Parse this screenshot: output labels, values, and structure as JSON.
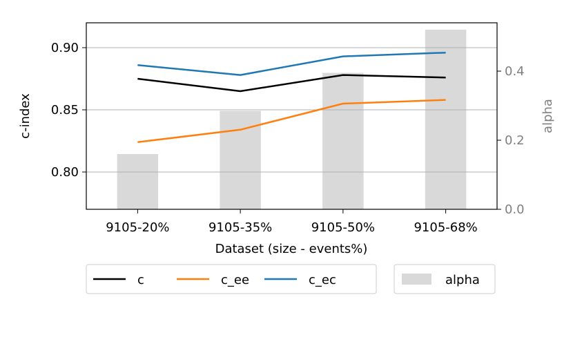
{
  "chart_data": {
    "type": "line",
    "categories": [
      "9105-20%",
      "9105-35%",
      "9105-50%",
      "9105-68%"
    ],
    "xlabel": "Dataset (size - events%)",
    "ylabel": "c-index",
    "y2label": "alpha",
    "ylim": [
      0.77,
      0.92
    ],
    "y2lim": [
      0.0,
      0.54
    ],
    "yticks": [
      "0.80",
      "0.85",
      "0.90"
    ],
    "y2ticks": [
      "0.0",
      "0.2",
      "0.4"
    ],
    "grid": "horizontal",
    "legend_position": "bottom",
    "series": [
      {
        "name": "c",
        "type": "line",
        "axis": "left",
        "color": "#000000",
        "values": [
          0.875,
          0.865,
          0.878,
          0.876
        ]
      },
      {
        "name": "c_ee",
        "type": "line",
        "axis": "left",
        "color": "#ff7f0e",
        "values": [
          0.824,
          0.834,
          0.855,
          0.858
        ]
      },
      {
        "name": "c_ec",
        "type": "line",
        "axis": "left",
        "color": "#1f77b4",
        "values": [
          0.886,
          0.878,
          0.893,
          0.896
        ]
      },
      {
        "name": "alpha",
        "type": "bar",
        "axis": "right",
        "color": "#d9d9d9",
        "values": [
          0.16,
          0.285,
          0.395,
          0.52
        ]
      }
    ]
  }
}
